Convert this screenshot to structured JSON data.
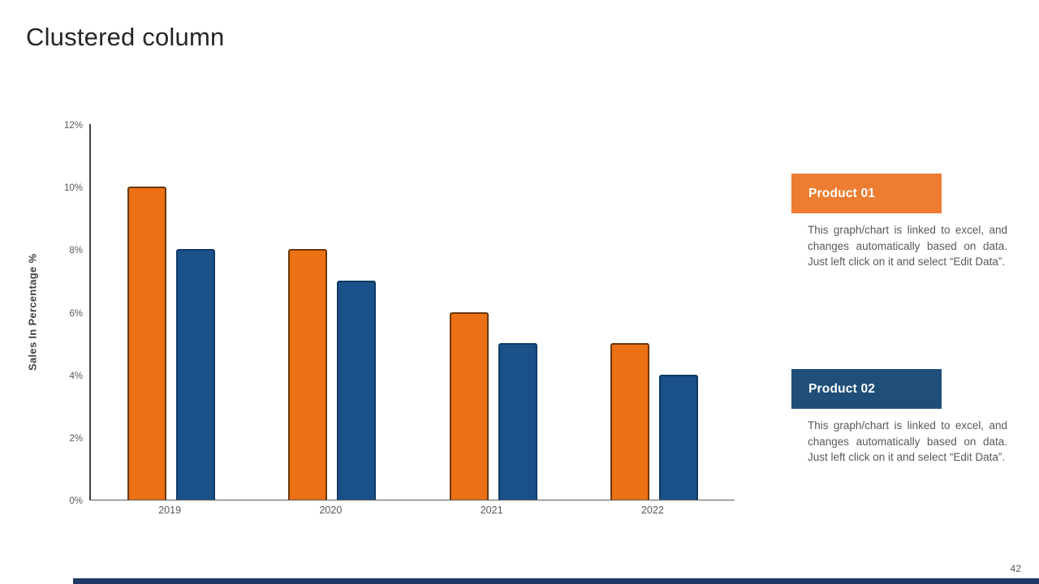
{
  "slide": {
    "title": "Clustered column",
    "page_number": "42"
  },
  "chart_data": {
    "type": "bar",
    "title": "",
    "categories": [
      "2019",
      "2020",
      "2021",
      "2022"
    ],
    "series": [
      {
        "name": "Product 01",
        "color": "#EC7014",
        "outline_color": "#6b3709",
        "values": [
          10,
          8,
          6,
          5
        ]
      },
      {
        "name": "Product 02",
        "color": "#1A5189",
        "outline_color": "#103túl",
        "values": [
          8,
          7,
          5,
          4
        ]
      }
    ],
    "xlabel": "",
    "ylabel": "Sales In Percentage %",
    "ylim": [
      0,
      12
    ],
    "ytick_step": 2,
    "ytick_suffix": "%",
    "grid": false,
    "legend_position": "right-cards"
  },
  "legend_cards": [
    {
      "label": "Product 01",
      "color": "#ED7D31",
      "description": "This graph/chart is linked to excel, and changes automatically based on data. Just left click on it and select “Edit Data”."
    },
    {
      "label": "Product 02",
      "color": "#1F4E79",
      "description": "This graph/chart is linked to excel, and changes automatically based on data. Just left click on it and select “Edit Data”."
    }
  ],
  "footer": {
    "accent_color": "#1F3864"
  }
}
